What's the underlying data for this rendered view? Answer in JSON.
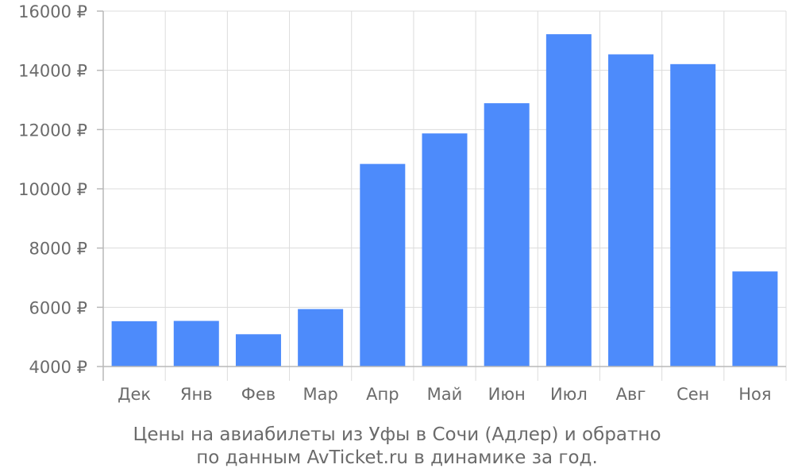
{
  "chart_data": {
    "type": "bar",
    "categories": [
      "Дек",
      "Янв",
      "Фев",
      "Мар",
      "Апр",
      "Май",
      "Июн",
      "Июл",
      "Авг",
      "Сен",
      "Ноя"
    ],
    "values": [
      5530,
      5540,
      5090,
      5940,
      10840,
      11870,
      12890,
      15220,
      14540,
      14210,
      7210
    ],
    "ylim": [
      4000,
      16000
    ],
    "yticks": [
      4000,
      6000,
      8000,
      10000,
      12000,
      14000,
      16000
    ],
    "ytick_labels": [
      "4000 ₽",
      "6000 ₽",
      "8000 ₽",
      "10000 ₽",
      "12000 ₽",
      "14000 ₽",
      "16000 ₽"
    ],
    "grid": true,
    "bar_color": "#4d8bfb",
    "caption_line1": "Цены на авиабилеты из Уфы в Сочи (Адлер) и обратно",
    "caption_line2": "по данным AvTicket.ru в динамике за год."
  }
}
